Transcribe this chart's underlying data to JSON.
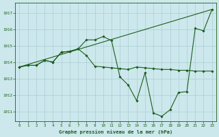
{
  "title": "Graphe pression niveau de la mer (hPa)",
  "background_color": "#cce8ec",
  "grid_color": "#aacdd4",
  "line_color": "#1a5c1a",
  "x_ticks": [
    0,
    1,
    2,
    3,
    4,
    5,
    6,
    7,
    8,
    9,
    10,
    11,
    12,
    13,
    14,
    15,
    16,
    17,
    18,
    19,
    20,
    21,
    22,
    23
  ],
  "y_ticks": [
    1011,
    1012,
    1013,
    1014,
    1015,
    1016,
    1017
  ],
  "ylim": [
    1010.4,
    1017.6
  ],
  "xlim": [
    -0.5,
    23.5
  ],
  "series_diagonal": {
    "x": [
      0,
      23
    ],
    "y": [
      1013.7,
      1017.2
    ]
  },
  "series_flat": {
    "x": [
      0,
      1,
      2,
      3,
      4,
      5,
      6,
      7,
      8,
      9,
      10,
      11,
      12,
      13,
      14,
      15,
      16,
      17,
      18,
      19,
      20,
      21,
      22,
      23
    ],
    "y": [
      1013.7,
      1013.8,
      1013.8,
      1014.1,
      1014.0,
      1014.6,
      1014.65,
      1014.8,
      1014.4,
      1013.75,
      1013.7,
      1013.65,
      1013.6,
      1013.55,
      1013.7,
      1013.65,
      1013.6,
      1013.55,
      1013.55,
      1013.5,
      1013.5,
      1013.45,
      1013.45,
      1013.45
    ]
  },
  "series_zigzag": {
    "x": [
      0,
      1,
      2,
      3,
      4,
      5,
      6,
      7,
      8,
      9,
      10,
      11,
      12,
      13,
      14,
      15,
      16,
      17,
      18,
      19,
      20,
      21,
      22,
      23
    ],
    "y": [
      1013.7,
      1013.8,
      1013.8,
      1014.1,
      1014.0,
      1014.6,
      1014.65,
      1014.8,
      1015.35,
      1015.35,
      1015.55,
      1015.3,
      1013.1,
      1012.6,
      1011.65,
      1013.35,
      1010.9,
      1010.7,
      1011.1,
      1012.15,
      1012.2,
      1016.05,
      1015.9,
      1017.2
    ]
  }
}
